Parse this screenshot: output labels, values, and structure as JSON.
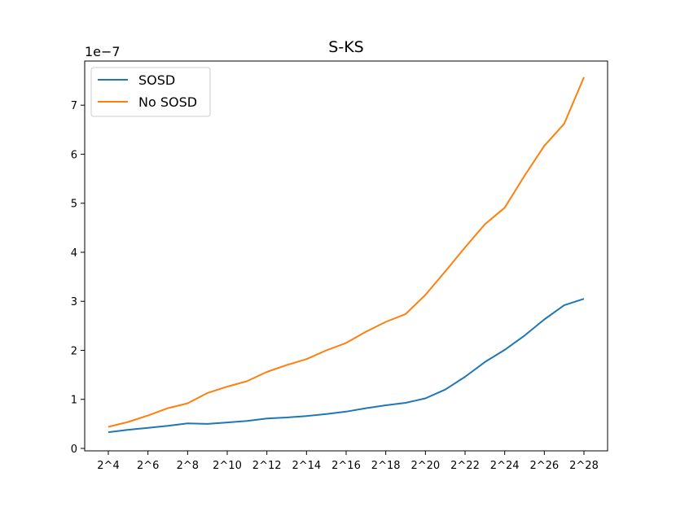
{
  "chart_data": {
    "type": "line",
    "title": "S-KS",
    "xlabel": "",
    "ylabel": "",
    "y_offset_label": "1e−7",
    "categories": [
      "2^4",
      "2^5",
      "2^6",
      "2^7",
      "2^8",
      "2^9",
      "2^10",
      "2^11",
      "2^12",
      "2^13",
      "2^14",
      "2^15",
      "2^16",
      "2^17",
      "2^18",
      "2^19",
      "2^20",
      "2^21",
      "2^22",
      "2^23",
      "2^24",
      "2^25",
      "2^26",
      "2^27",
      "2^28"
    ],
    "x_tick_labels": [
      "2^4",
      "2^6",
      "2^8",
      "2^10",
      "2^12",
      "2^14",
      "2^16",
      "2^18",
      "2^20",
      "2^22",
      "2^24",
      "2^26",
      "2^28"
    ],
    "y_ticks": [
      0,
      1,
      2,
      3,
      4,
      5,
      6,
      7
    ],
    "ylim": [
      -0.05,
      7.9
    ],
    "grid": false,
    "legend_position": "top-left",
    "series": [
      {
        "name": "SOSD",
        "color": "#1f77b4",
        "values": [
          0.33,
          0.38,
          0.42,
          0.46,
          0.51,
          0.5,
          0.53,
          0.56,
          0.61,
          0.63,
          0.66,
          0.7,
          0.75,
          0.82,
          0.88,
          0.93,
          1.02,
          1.2,
          1.46,
          1.76,
          2.01,
          2.3,
          2.63,
          2.92,
          3.05
        ]
      },
      {
        "name": "No SOSD",
        "color": "#ff7f0e",
        "values": [
          0.44,
          0.54,
          0.67,
          0.82,
          0.92,
          1.13,
          1.26,
          1.37,
          1.56,
          1.7,
          1.82,
          2.0,
          2.15,
          2.38,
          2.58,
          2.74,
          3.13,
          3.61,
          4.1,
          4.57,
          4.91,
          5.56,
          6.17,
          6.62,
          7.57
        ]
      }
    ]
  }
}
